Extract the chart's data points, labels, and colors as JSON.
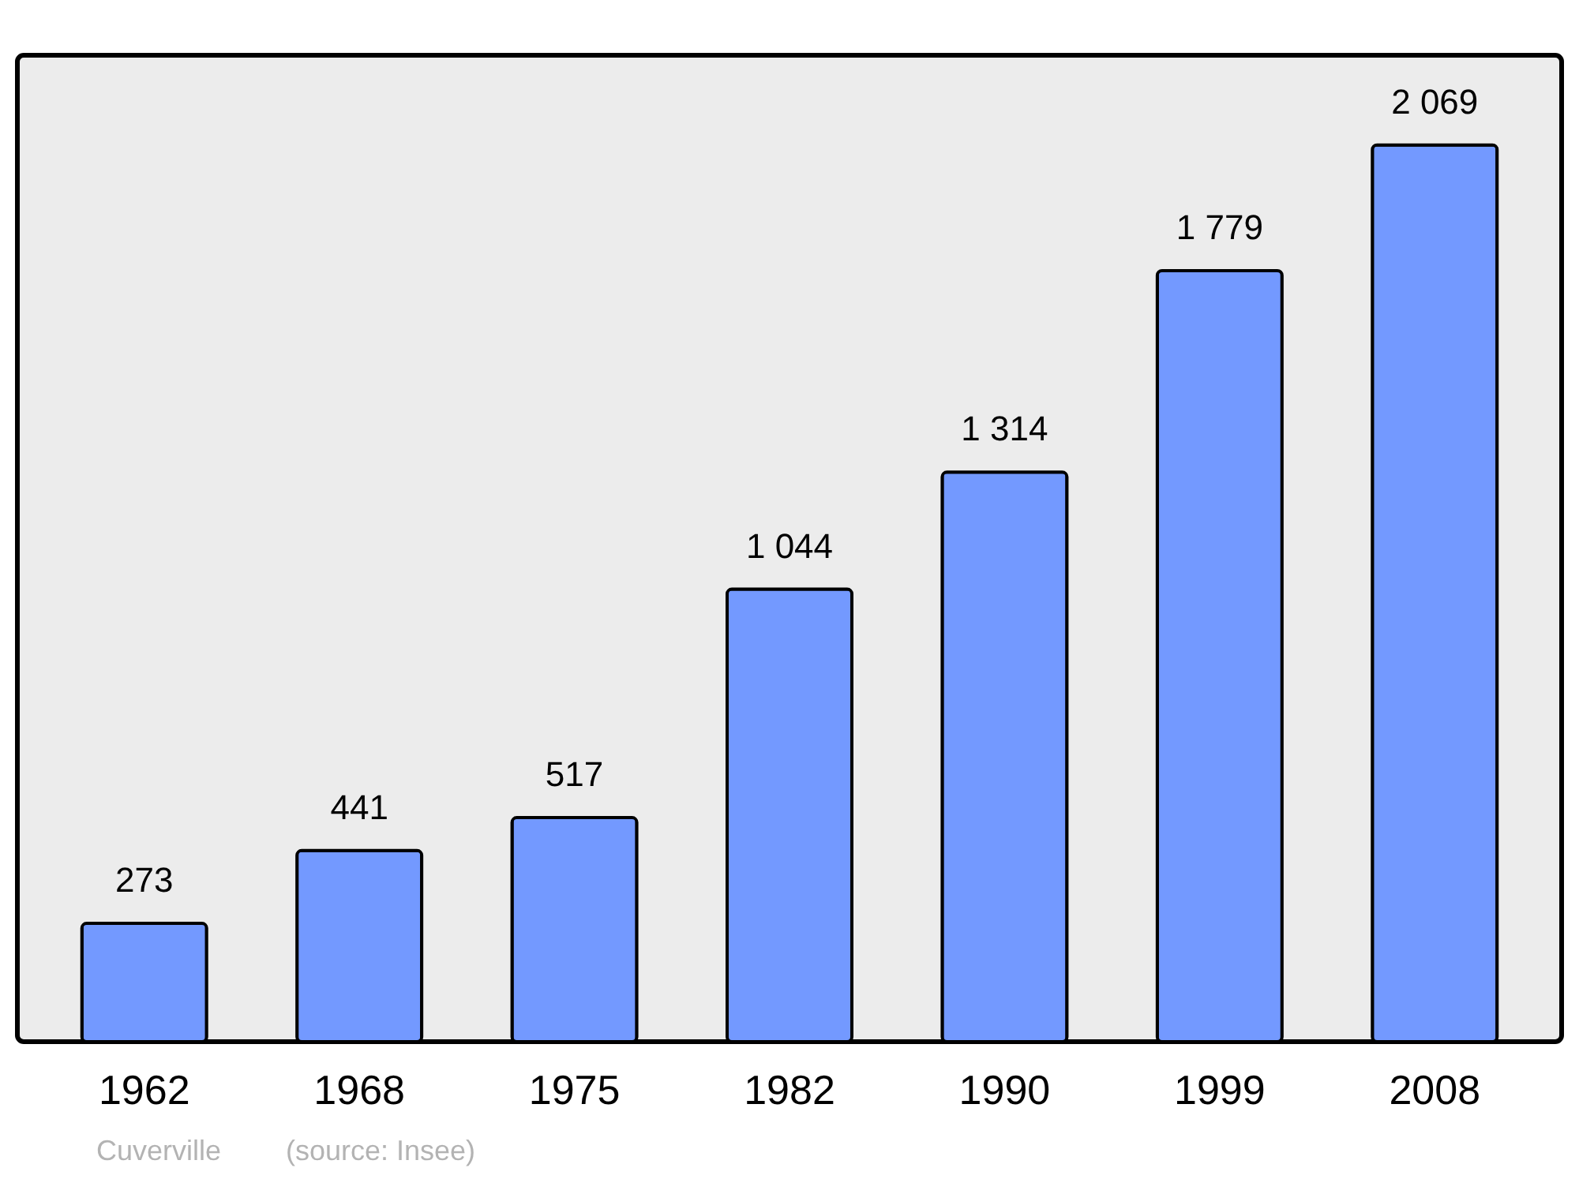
{
  "chart_data": {
    "type": "bar",
    "categories": [
      "1962",
      "1968",
      "1975",
      "1982",
      "1990",
      "1999",
      "2008"
    ],
    "values": [
      273,
      441,
      517,
      1044,
      1314,
      1779,
      2069
    ],
    "value_labels": [
      "273",
      "441",
      "517",
      "1 044",
      "1 314",
      "1 779",
      "2 069"
    ],
    "color": "#7399ff",
    "annotations": [
      "Cuverville",
      "(source: Insee)"
    ],
    "grid": false
  }
}
